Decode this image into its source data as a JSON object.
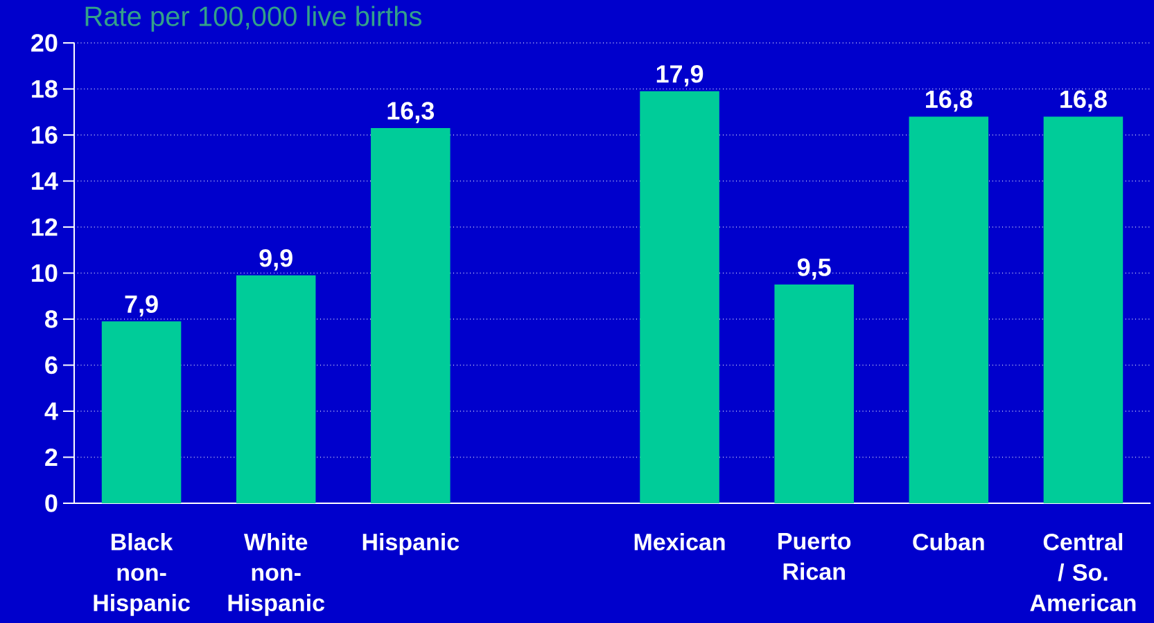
{
  "chart_data": {
    "type": "bar",
    "title": "Rate per 100,000 live births",
    "categories": [
      "Black non-Hispanic",
      "White non-Hispanic",
      "Hispanic",
      null,
      "Mexican",
      "Puerto Rican",
      "Cuban",
      "Central / So. American"
    ],
    "values": [
      7.9,
      9.9,
      16.3,
      null,
      17.9,
      9.5,
      16.8,
      16.8
    ],
    "value_labels": [
      "7,9",
      "9,9",
      "16,3",
      null,
      "17,9",
      "9,5",
      "16,8",
      "16,8"
    ],
    "color": "#00cc99",
    "ylim": [
      0,
      20
    ],
    "yticks": [
      0,
      2,
      4,
      6,
      8,
      10,
      12,
      14,
      16,
      18,
      20
    ],
    "grid": "y"
  }
}
